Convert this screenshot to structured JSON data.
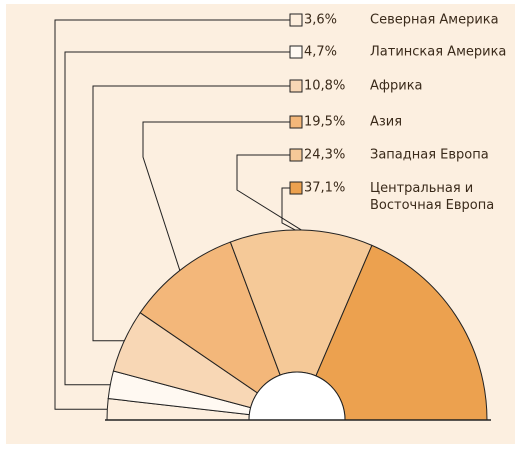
{
  "chart_data": {
    "type": "semidonut",
    "categories": [
      "Северная Америка",
      "Латинская Америка",
      "Африка",
      "Азия",
      "Западная Европа",
      "Центральная и\nВосточная Европа"
    ],
    "values": [
      3.6,
      4.7,
      10.8,
      19.5,
      24.3,
      37.1
    ],
    "value_labels": [
      "3,6%",
      "4,7%",
      "10,8%",
      "19,5%",
      "24,3%",
      "37,1%"
    ],
    "colors": [
      "#fdeedd",
      "#fff9f2",
      "#f8d7b5",
      "#f3b77a",
      "#f5c998",
      "#eca14f"
    ]
  }
}
